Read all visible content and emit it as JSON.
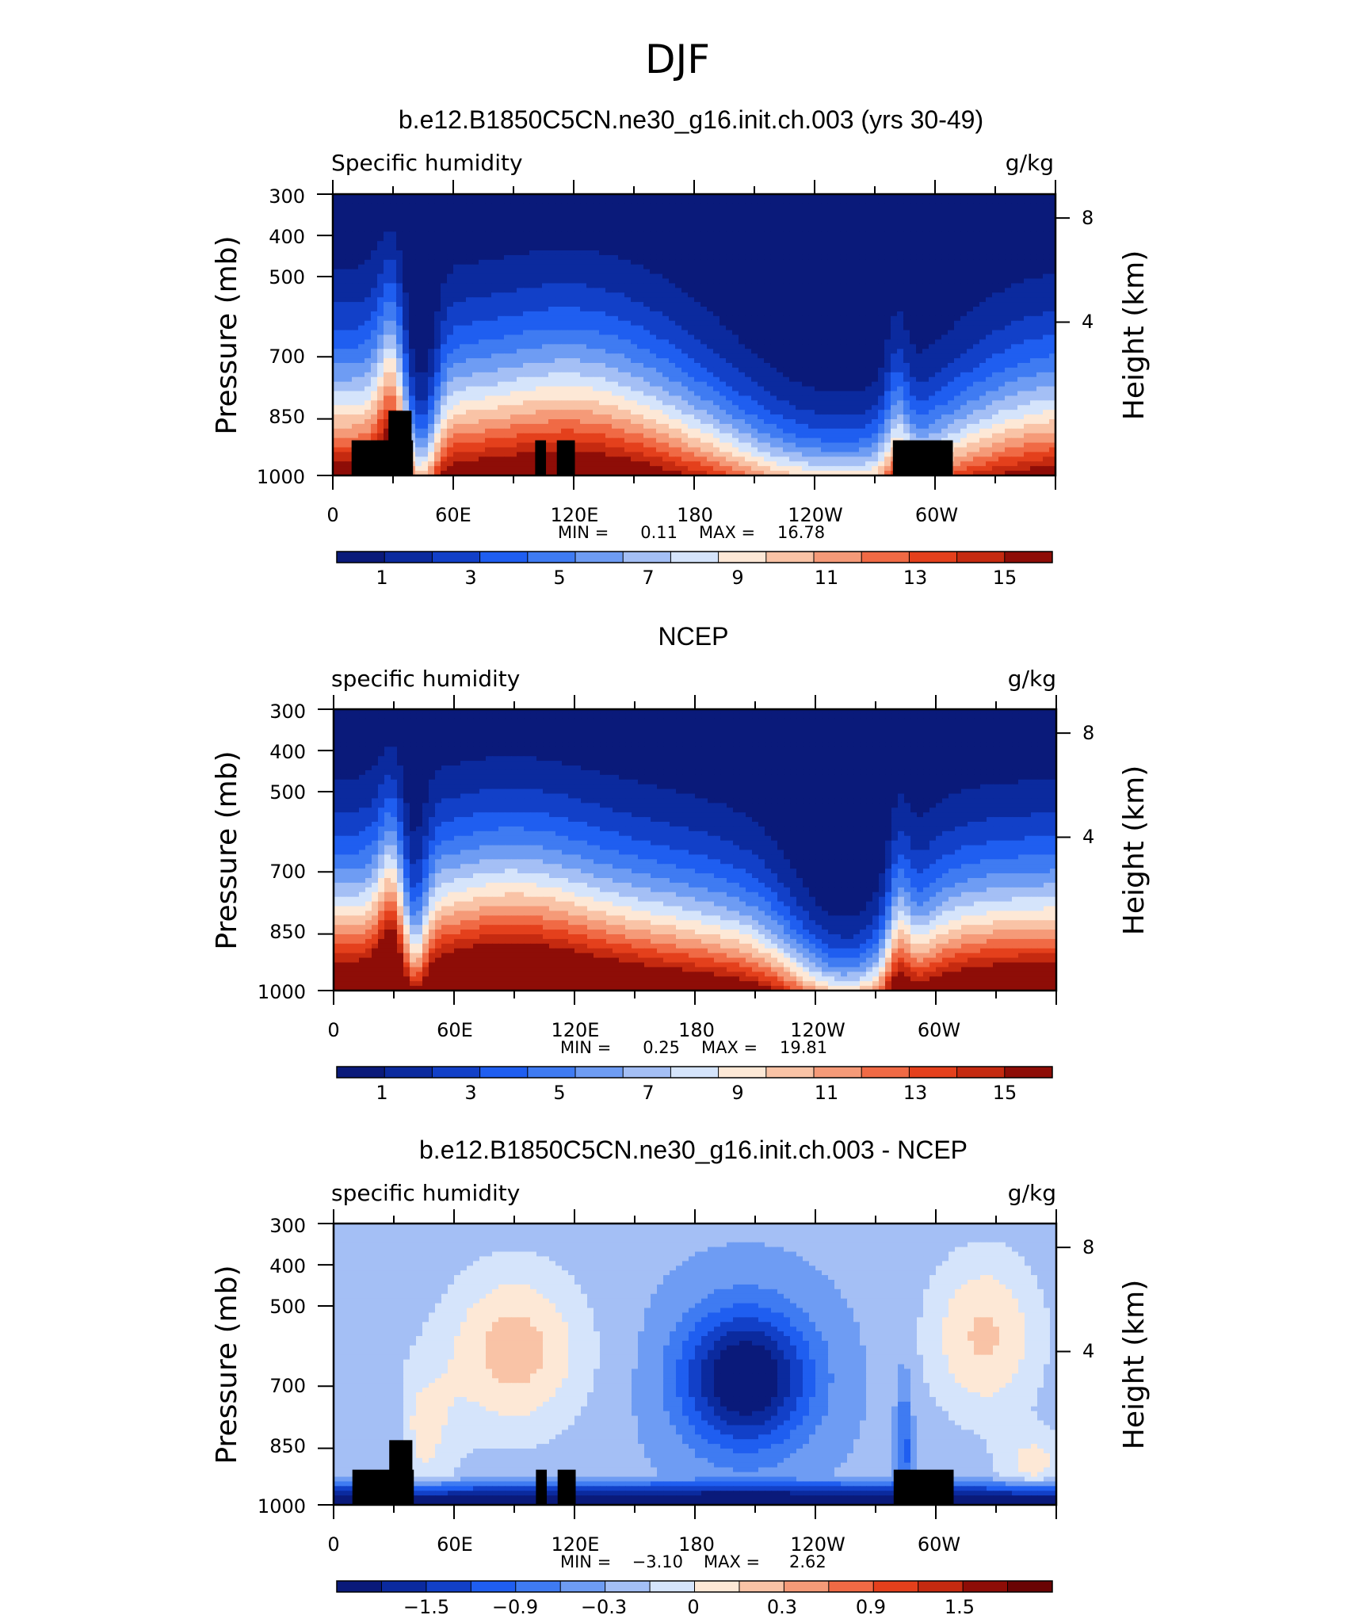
{
  "figure": {
    "title": "DJF"
  },
  "chart_data": [
    {
      "type": "heatmap",
      "title": "b.e12.B1850C5CN.ne30_g16.init.ch.003 (yrs 30-49)",
      "left_label": "Specific humidity",
      "units": "g/kg",
      "ylabel": "Pressure (mb)",
      "ylabel_right": "Height (km)",
      "y_ticks": [
        "300",
        "400",
        "500",
        "700",
        "850",
        "1000"
      ],
      "y_ticks_right": [
        "8",
        "4"
      ],
      "x_ticks": [
        "0",
        "60E",
        "120E",
        "180",
        "120W",
        "60W"
      ],
      "min_label": "MIN =",
      "min_value": "0.11",
      "max_label": "MAX =",
      "max_value": "16.78",
      "colorbar_labels": [
        "1",
        "3",
        "5",
        "7",
        "9",
        "11",
        "13",
        "15"
      ],
      "colorbar_colors": [
        "#0a1a7a",
        "#0b2a9e",
        "#1240c8",
        "#1f5ef0",
        "#3f7bf2",
        "#6e9cf3",
        "#a4bff5",
        "#d5e4fb",
        "#fde8d6",
        "#f9c3a6",
        "#f59a78",
        "#f06a45",
        "#e4401c",
        "#c52a10",
        "#8e0d07"
      ],
      "levels_min": 0,
      "levels_step": 1,
      "field": "model"
    },
    {
      "type": "heatmap",
      "title": "NCEP",
      "left_label": "specific humidity",
      "units": "g/kg",
      "ylabel": "Pressure (mb)",
      "ylabel_right": "Height (km)",
      "y_ticks": [
        "300",
        "400",
        "500",
        "700",
        "850",
        "1000"
      ],
      "y_ticks_right": [
        "8",
        "4"
      ],
      "x_ticks": [
        "0",
        "60E",
        "120E",
        "180",
        "120W",
        "60W"
      ],
      "min_label": "MIN =",
      "min_value": "0.25",
      "max_label": "MAX =",
      "max_value": "19.81",
      "colorbar_labels": [
        "1",
        "3",
        "5",
        "7",
        "9",
        "11",
        "13",
        "15"
      ],
      "colorbar_colors": [
        "#0a1a7a",
        "#0b2a9e",
        "#1240c8",
        "#1f5ef0",
        "#3f7bf2",
        "#6e9cf3",
        "#a4bff5",
        "#d5e4fb",
        "#fde8d6",
        "#f9c3a6",
        "#f59a78",
        "#f06a45",
        "#e4401c",
        "#c52a10",
        "#8e0d07"
      ],
      "levels_min": 0,
      "levels_step": 1,
      "field": "obs"
    },
    {
      "type": "heatmap",
      "title": "b.e12.B1850C5CN.ne30_g16.init.ch.003 - NCEP",
      "left_label": "specific humidity",
      "units": "g/kg",
      "ylabel": "Pressure (mb)",
      "ylabel_right": "Height (km)",
      "y_ticks": [
        "300",
        "400",
        "500",
        "700",
        "850",
        "1000"
      ],
      "y_ticks_right": [
        "8",
        "4"
      ],
      "x_ticks": [
        "0",
        "60E",
        "120E",
        "180",
        "120W",
        "60W"
      ],
      "min_label": "MIN =",
      "min_value": "−3.10",
      "max_label": "MAX =",
      "max_value": "2.62",
      "colorbar_labels": [
        "−1.5",
        "−0.9",
        "−0.3",
        "0",
        "0.3",
        "0.9",
        "1.5"
      ],
      "colorbar_colors": [
        "#0a1a7a",
        "#0b2a9e",
        "#1240c8",
        "#1f5ef0",
        "#3f7bf2",
        "#6e9cf3",
        "#a4bff5",
        "#d5e4fb",
        "#fde8d6",
        "#f9c3a6",
        "#f59a78",
        "#f06a45",
        "#e4401c",
        "#c52a10",
        "#8e0d07",
        "#6a0404"
      ],
      "levels_min": -2.1,
      "levels_step": 0.3,
      "field": "diff"
    }
  ]
}
